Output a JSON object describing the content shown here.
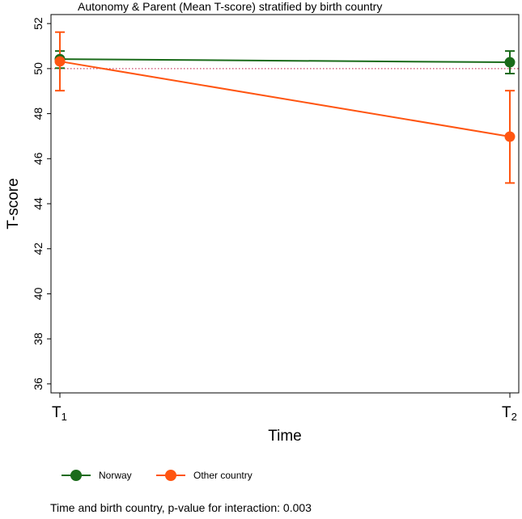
{
  "chart_data": {
    "type": "line",
    "title": "Autonomy & Parent (Mean T-score) stratified by birth country",
    "xlabel": "Time",
    "ylabel": "T-score",
    "categories": [
      {
        "main": "T",
        "sub": "1"
      },
      {
        "main": "T",
        "sub": "2"
      }
    ],
    "ylim": [
      35.6,
      52.4
    ],
    "yticks": [
      36,
      38,
      40,
      42,
      44,
      46,
      48,
      50,
      52
    ],
    "reference_line": 50,
    "grid": false,
    "legend_position": "bottom",
    "series": [
      {
        "name": "Norway",
        "color": "#1a6b1a",
        "values": [
          50.42,
          50.28
        ],
        "lower": [
          50.02,
          49.78
        ],
        "upper": [
          50.78,
          50.78
        ]
      },
      {
        "name": "Other country",
        "color": "#ff5511",
        "values": [
          50.32,
          46.98
        ],
        "lower": [
          49.02,
          44.92
        ],
        "upper": [
          51.62,
          49.02
        ]
      }
    ],
    "annotation": "Time and birth country, p-value for interaction: 0.003"
  }
}
